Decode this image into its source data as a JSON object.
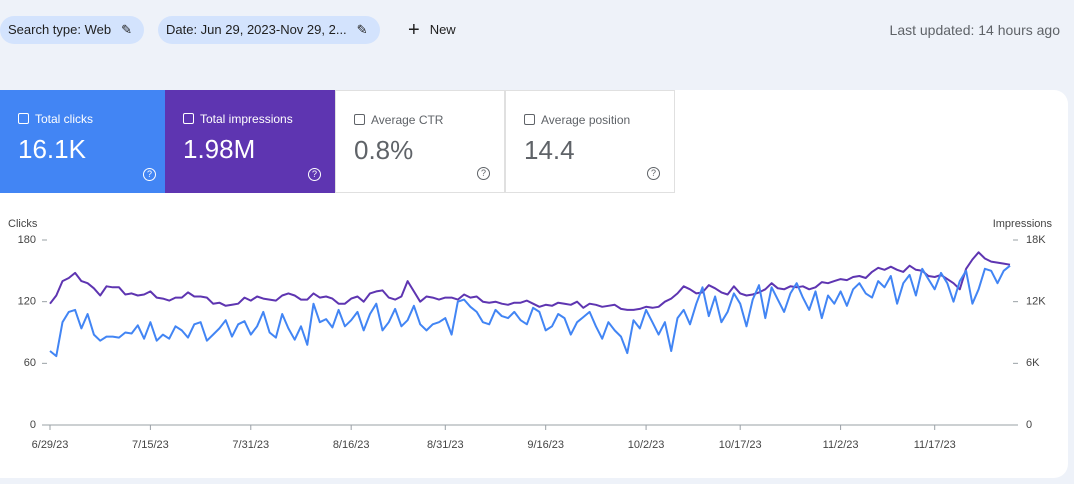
{
  "toolbar": {
    "chips": [
      "Search type: Web",
      "Date: Jun 29, 2023-Nov 29, 2..."
    ],
    "new_button": "New",
    "last_updated": "Last updated: 14 hours ago"
  },
  "cards": [
    {
      "label": "Total clicks",
      "value": "16.1K"
    },
    {
      "label": "Total impressions",
      "value": "1.98M"
    },
    {
      "label": "Average CTR",
      "value": "0.8%"
    },
    {
      "label": "Average position",
      "value": "14.4"
    }
  ],
  "chart_data": {
    "type": "line",
    "y_label": "Clicks",
    "y2_label": "Impressions",
    "categories": [
      "6/29/23",
      null,
      null,
      null,
      null,
      null,
      null,
      null,
      null,
      null,
      null,
      null,
      null,
      null,
      null,
      null,
      "7/15/23",
      null,
      null,
      null,
      null,
      null,
      null,
      null,
      null,
      null,
      null,
      null,
      null,
      null,
      null,
      null,
      "7/31/23",
      null,
      null,
      null,
      null,
      null,
      null,
      null,
      null,
      null,
      null,
      null,
      null,
      null,
      null,
      null,
      "8/16/23",
      null,
      null,
      null,
      null,
      null,
      null,
      null,
      null,
      null,
      null,
      null,
      null,
      null,
      null,
      "8/31/23",
      null,
      null,
      null,
      null,
      null,
      null,
      null,
      null,
      null,
      null,
      null,
      null,
      null,
      null,
      null,
      "9/16/23",
      null,
      null,
      null,
      null,
      null,
      null,
      null,
      null,
      null,
      null,
      null,
      null,
      null,
      null,
      null,
      "10/2/23",
      null,
      null,
      null,
      null,
      null,
      null,
      null,
      null,
      null,
      null,
      null,
      null,
      null,
      null,
      "10/17/23",
      null,
      null,
      null,
      null,
      null,
      null,
      null,
      null,
      null,
      null,
      null,
      null,
      null,
      null,
      null,
      "11/2/23",
      null,
      null,
      null,
      null,
      null,
      null,
      null,
      null,
      null,
      null,
      null,
      null,
      null,
      null,
      "11/17/23",
      null,
      null,
      null,
      null,
      null,
      null,
      null,
      null,
      null,
      null,
      null,
      null
    ],
    "series": [
      {
        "name": "Clicks",
        "color": "#4285f4",
        "axis": "y",
        "values": [
          72,
          67,
          100,
          110,
          112,
          94,
          108,
          88,
          82,
          86,
          86,
          85,
          90,
          89,
          97,
          84,
          100,
          82,
          88,
          84,
          96,
          92,
          85,
          98,
          100,
          82,
          88,
          94,
          102,
          86,
          98,
          101,
          88,
          96,
          110,
          90,
          85,
          108,
          94,
          83,
          96,
          78,
          118,
          100,
          103,
          95,
          112,
          96,
          102,
          110,
          92,
          108,
          118,
          92,
          100,
          113,
          96,
          102,
          116,
          98,
          92,
          98,
          100,
          104,
          88,
          120,
          122,
          115,
          110,
          100,
          98,
          112,
          106,
          104,
          110,
          102,
          98,
          114,
          110,
          92,
          96,
          108,
          104,
          88,
          100,
          105,
          110,
          96,
          84,
          100,
          92,
          86,
          70,
          102,
          94,
          112,
          100,
          88,
          100,
          72,
          104,
          112,
          98,
          118,
          134,
          106,
          125,
          100,
          110,
          128,
          118,
          96,
          122,
          136,
          104,
          134,
          122,
          110,
          128,
          138,
          124,
          112,
          130,
          104,
          126,
          118,
          130,
          116,
          132,
          138,
          128,
          124,
          140,
          134,
          145,
          118,
          138,
          146,
          126,
          152,
          142,
          132,
          148,
          138,
          120,
          140,
          150,
          118,
          132,
          152,
          150,
          138,
          150,
          155
        ]
      },
      {
        "name": "Impressions",
        "color": "#5e35b1",
        "axis": "y2",
        "values": [
          11800,
          12600,
          14000,
          14300,
          14800,
          14000,
          13800,
          13300,
          12600,
          13500,
          13400,
          13400,
          12700,
          12800,
          12600,
          12700,
          13000,
          12400,
          12300,
          12100,
          12400,
          12400,
          12900,
          12500,
          12500,
          12400,
          11800,
          11900,
          11600,
          11700,
          11800,
          12400,
          12100,
          12500,
          12300,
          12200,
          12100,
          12600,
          12800,
          12600,
          12200,
          12200,
          12800,
          12400,
          12500,
          12300,
          11800,
          11800,
          12300,
          12500,
          12000,
          12800,
          13000,
          13100,
          12400,
          12200,
          12500,
          14000,
          13000,
          12000,
          12500,
          12400,
          12200,
          12400,
          12400,
          12200,
          12700,
          12400,
          12500,
          12000,
          11900,
          12000,
          11800,
          11700,
          11900,
          11900,
          12100,
          11800,
          11500,
          11700,
          11600,
          11900,
          11800,
          11700,
          12000,
          11400,
          11800,
          11700,
          11500,
          11600,
          11700,
          11300,
          11200,
          11200,
          11300,
          11500,
          11400,
          11500,
          12000,
          12300,
          12800,
          13500,
          13200,
          12800,
          12900,
          13600,
          13300,
          12900,
          12700,
          13500,
          12800,
          12600,
          12700,
          12900,
          13200,
          13800,
          13300,
          13200,
          13500,
          13400,
          13500,
          13200,
          13400,
          13900,
          13800,
          14000,
          14200,
          14100,
          14400,
          14500,
          14300,
          14900,
          15300,
          15100,
          15400,
          15100,
          14900,
          15500,
          15100,
          15000,
          14500,
          14400,
          14600,
          14200,
          13800,
          13200,
          15200,
          16100,
          16800,
          16200,
          15900,
          15800,
          15700,
          15600
        ]
      }
    ],
    "ylim": [
      0,
      180
    ],
    "yticks": [
      0,
      60,
      120,
      180
    ],
    "y2lim": [
      0,
      18000
    ],
    "y2ticks": [
      0,
      {
        "value": 6000,
        "label": "6K"
      },
      {
        "value": 12000,
        "label": "12K"
      },
      {
        "value": 18000,
        "label": "18K"
      }
    ],
    "grid": false
  }
}
